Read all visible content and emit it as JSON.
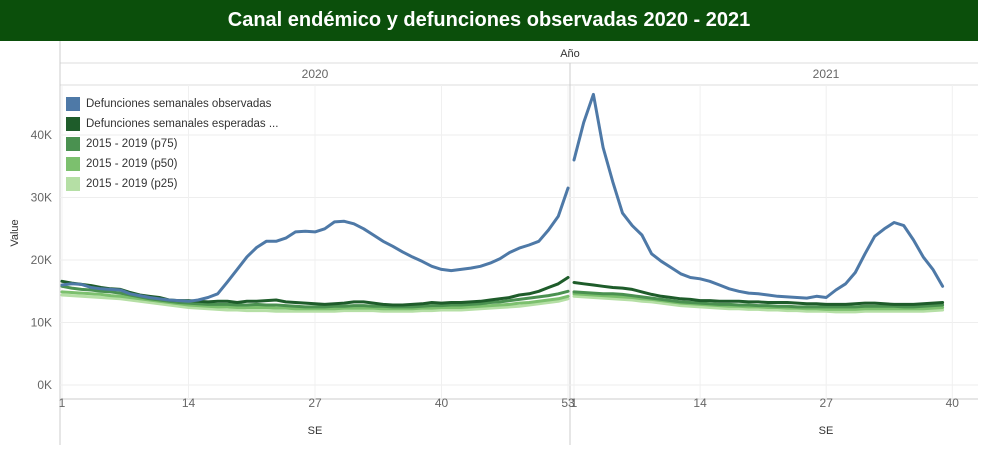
{
  "header": {
    "title": "Canal endémico y defunciones observadas 2020 - 2021"
  },
  "colors": {
    "observed": "#4e79a7",
    "expected": "#1e5c2a",
    "p75": "#4a9150",
    "p50": "#7cc06e",
    "p25": "#b5dfa5"
  },
  "chart_data": {
    "type": "line",
    "column_header": "Año",
    "panels": [
      {
        "year": "2020",
        "x_ticks": [
          "1",
          "14",
          "27",
          "40",
          "53"
        ],
        "x_range": [
          1,
          53
        ]
      },
      {
        "year": "2021",
        "x_ticks": [
          "1",
          "14",
          "27",
          "40"
        ],
        "x_range": [
          1,
          41
        ]
      }
    ],
    "xlabel": "SE",
    "ylabel": "Value",
    "y_ticks": [
      "0K",
      "10K",
      "20K",
      "30K",
      "40K"
    ],
    "ylim": [
      0,
      48000
    ],
    "legend": [
      "Defunciones semanales observadas",
      "Defunciones semanales esperadas ...",
      "2015 - 2019 (p75)",
      "2015 - 2019 (p50)",
      "2015 - 2019 (p25)"
    ],
    "series": [
      {
        "name": "Defunciones semanales observadas",
        "color_key": "observed",
        "y2020": [
          16000,
          16200,
          16100,
          15600,
          15400,
          15300,
          15200,
          14600,
          14300,
          14000,
          13800,
          13600,
          13500,
          13400,
          13600,
          14000,
          14600,
          16500,
          18500,
          20500,
          22000,
          23000,
          23000,
          23500,
          24500,
          24600,
          24500,
          25000,
          26100,
          26200,
          25800,
          25000,
          24000,
          23000,
          22200,
          21300,
          20500,
          19800,
          19000,
          18500,
          18300,
          18500,
          18700,
          19000,
          19500,
          20200,
          21200,
          21900,
          22400,
          23000,
          24800,
          27000,
          31500
        ],
        "y2021": [
          36000,
          42000,
          46500,
          38000,
          32500,
          27500,
          25500,
          24000,
          21000,
          19800,
          18800,
          17800,
          17200,
          17000,
          16600,
          16000,
          15400,
          15000,
          14700,
          14600,
          14400,
          14200,
          14100,
          14000,
          13900,
          14200,
          14000,
          15200,
          16200,
          18000,
          21000,
          23800,
          25000,
          26000,
          25500,
          23200,
          20500,
          18500,
          15800
        ]
      },
      {
        "name": "Defunciones semanales esperadas ...",
        "color_key": "expected",
        "y2020": [
          16600,
          16300,
          16100,
          15900,
          15600,
          15400,
          15300,
          14800,
          14400,
          14200,
          14000,
          13600,
          13500,
          13500,
          13400,
          13300,
          13400,
          13400,
          13200,
          13400,
          13400,
          13500,
          13600,
          13300,
          13200,
          13100,
          13000,
          12900,
          13000,
          13100,
          13300,
          13300,
          13100,
          12900,
          12800,
          12800,
          12900,
          13000,
          13200,
          13100,
          13200,
          13200,
          13300,
          13400,
          13600,
          13800,
          14000,
          14400,
          14600,
          15000,
          15600,
          16200,
          17200
        ],
        "y2021": [
          16400,
          16200,
          16000,
          15800,
          15600,
          15500,
          15300,
          14900,
          14500,
          14200,
          14000,
          13800,
          13700,
          13500,
          13500,
          13400,
          13400,
          13400,
          13300,
          13300,
          13200,
          13200,
          13200,
          13100,
          13000,
          13000,
          12900,
          12900,
          12900,
          13000,
          13100,
          13100,
          13000,
          12900,
          12900,
          12900,
          13000,
          13100,
          13200
        ]
      },
      {
        "name": "2015 - 2019 (p75)",
        "color_key": "p75",
        "y2020": [
          15800,
          15500,
          15300,
          15200,
          15000,
          14900,
          14700,
          14400,
          14100,
          13800,
          13600,
          13400,
          13200,
          13100,
          13000,
          12900,
          12900,
          12900,
          12800,
          12800,
          12900,
          12800,
          12800,
          12700,
          12600,
          12500,
          12500,
          12500,
          12600,
          12600,
          12700,
          12700,
          12600,
          12600,
          12500,
          12500,
          12500,
          12600,
          12700,
          12700,
          12800,
          12800,
          12900,
          13000,
          13200,
          13300,
          13500,
          13700,
          13900,
          14100,
          14300,
          14600,
          15000
        ],
        "y2021": [
          14900,
          14800,
          14700,
          14600,
          14600,
          14500,
          14300,
          14100,
          13900,
          13700,
          13500,
          13300,
          13200,
          13100,
          13000,
          12900,
          12900,
          12800,
          12800,
          12700,
          12700,
          12600,
          12600,
          12500,
          12500,
          12500,
          12500,
          12500,
          12500,
          12500,
          12600,
          12600,
          12600,
          12600,
          12500,
          12500,
          12600,
          12700,
          12800
        ]
      },
      {
        "name": "2015 - 2019 (p50)",
        "color_key": "p50",
        "y2020": [
          14900,
          14800,
          14700,
          14600,
          14500,
          14300,
          14200,
          14000,
          13800,
          13600,
          13400,
          13200,
          13000,
          12800,
          12700,
          12600,
          12500,
          12500,
          12400,
          12400,
          12400,
          12400,
          12300,
          12300,
          12200,
          12200,
          12200,
          12200,
          12200,
          12300,
          12300,
          12300,
          12300,
          12200,
          12200,
          12200,
          12200,
          12300,
          12300,
          12400,
          12400,
          12400,
          12500,
          12600,
          12700,
          12800,
          12900,
          13100,
          13200,
          13400,
          13600,
          13800,
          14200
        ],
        "y2021": [
          14600,
          14500,
          14400,
          14300,
          14200,
          14100,
          14000,
          13800,
          13700,
          13500,
          13300,
          13100,
          13000,
          12900,
          12800,
          12700,
          12600,
          12600,
          12500,
          12500,
          12400,
          12400,
          12300,
          12300,
          12200,
          12200,
          12100,
          12100,
          12100,
          12100,
          12200,
          12200,
          12200,
          12200,
          12200,
          12200,
          12200,
          12300,
          12400
        ]
      },
      {
        "name": "2015 - 2019 (p25)",
        "color_key": "p25",
        "y2020": [
          14400,
          14300,
          14200,
          14100,
          14000,
          13900,
          13800,
          13600,
          13400,
          13200,
          13000,
          12800,
          12600,
          12400,
          12300,
          12200,
          12100,
          12000,
          12000,
          11900,
          11900,
          11900,
          11800,
          11800,
          11800,
          11800,
          11800,
          11800,
          11800,
          11900,
          11900,
          11900,
          11900,
          11800,
          11800,
          11800,
          11800,
          11900,
          11900,
          12000,
          12000,
          12000,
          12100,
          12200,
          12300,
          12400,
          12500,
          12600,
          12800,
          13000,
          13200,
          13400,
          13800
        ],
        "y2021": [
          14200,
          14100,
          14000,
          13900,
          13800,
          13700,
          13600,
          13400,
          13300,
          13100,
          12900,
          12700,
          12600,
          12500,
          12400,
          12300,
          12200,
          12200,
          12100,
          12100,
          12000,
          12000,
          11900,
          11900,
          11800,
          11800,
          11800,
          11700,
          11700,
          11700,
          11800,
          11800,
          11800,
          11800,
          11800,
          11800,
          11800,
          11900,
          12000
        ]
      }
    ]
  }
}
